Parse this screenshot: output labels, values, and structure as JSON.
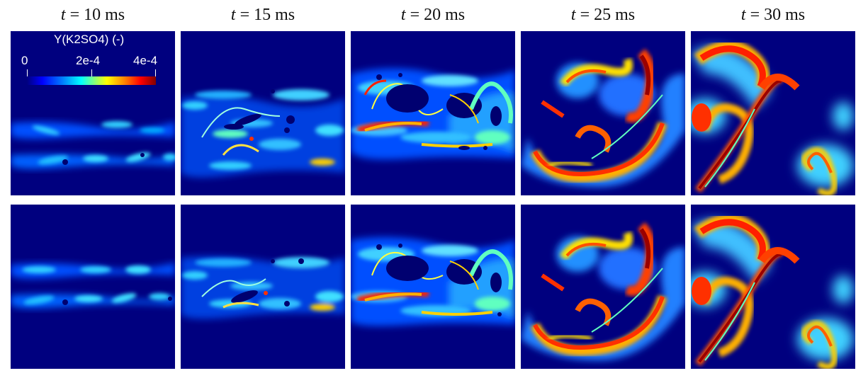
{
  "columns": [
    {
      "t_var": "t",
      "t_rest": " = 10 ms"
    },
    {
      "t_var": "t",
      "t_rest": " = 15 ms"
    },
    {
      "t_var": "t",
      "t_rest": " = 20 ms"
    },
    {
      "t_var": "t",
      "t_rest": " = 25 ms"
    },
    {
      "t_var": "t",
      "t_rest": " = 30 ms"
    }
  ],
  "colorbar": {
    "title": "Y(K2SO4) (-)",
    "ticks": [
      "0",
      "2e-4",
      "4e-4"
    ],
    "colormap": "jet",
    "range": [
      0,
      0.0004
    ]
  },
  "colors": {
    "background": "#00007f",
    "page": "#ffffff"
  }
}
